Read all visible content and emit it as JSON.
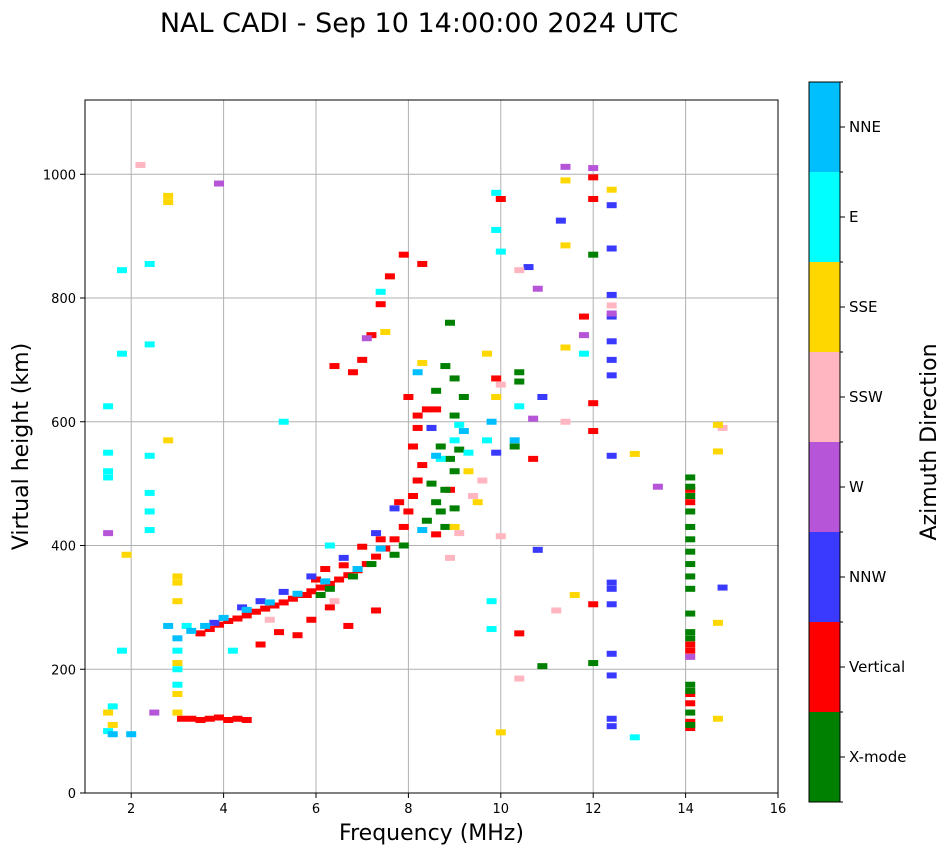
{
  "chart_data": {
    "type": "scatter",
    "title": "NAL CADI - Sep 10 14:00:00 2024 UTC",
    "xlabel": "Frequency (MHz)",
    "ylabel": "Virtual height (km)",
    "xlim": [
      1,
      16
    ],
    "ylim": [
      0,
      1120
    ],
    "xticks": [
      2,
      4,
      6,
      8,
      10,
      12,
      14,
      16
    ],
    "yticks": [
      0,
      200,
      400,
      600,
      800,
      1000
    ],
    "grid": true,
    "colorbar": {
      "label": "Azimuth Direction",
      "categories": [
        {
          "name": "X-mode",
          "color": "#008000"
        },
        {
          "name": "Vertical",
          "color": "#ff0000"
        },
        {
          "name": "NNW",
          "color": "#3a3aff"
        },
        {
          "name": "W",
          "color": "#b655d8"
        },
        {
          "name": "SSW",
          "color": "#ffb6c1"
        },
        {
          "name": "SSE",
          "color": "#ffd700"
        },
        {
          "name": "E",
          "color": "#00ffff"
        },
        {
          "name": "NNE",
          "color": "#00bfff"
        }
      ]
    },
    "series": [
      {
        "name": "Vertical",
        "points": [
          [
            3.1,
            120
          ],
          [
            3.3,
            120
          ],
          [
            3.5,
            118
          ],
          [
            3.7,
            120
          ],
          [
            3.9,
            122
          ],
          [
            4.1,
            118
          ],
          [
            4.3,
            120
          ],
          [
            4.5,
            118
          ],
          [
            3.5,
            258
          ],
          [
            3.7,
            265
          ],
          [
            3.9,
            272
          ],
          [
            4.1,
            278
          ],
          [
            4.3,
            282
          ],
          [
            4.5,
            287
          ],
          [
            4.7,
            293
          ],
          [
            4.9,
            298
          ],
          [
            5.1,
            303
          ],
          [
            5.3,
            308
          ],
          [
            5.5,
            314
          ],
          [
            5.7,
            320
          ],
          [
            5.9,
            326
          ],
          [
            6.1,
            332
          ],
          [
            6.3,
            338
          ],
          [
            6.5,
            345
          ],
          [
            6.7,
            352
          ],
          [
            6.9,
            360
          ],
          [
            7.1,
            370
          ],
          [
            7.3,
            382
          ],
          [
            7.5,
            395
          ],
          [
            7.7,
            410
          ],
          [
            7.9,
            430
          ],
          [
            8.0,
            455
          ],
          [
            8.1,
            480
          ],
          [
            8.2,
            505
          ],
          [
            8.3,
            530
          ],
          [
            8.1,
            560
          ],
          [
            8.2,
            590
          ],
          [
            8.4,
            620
          ],
          [
            6.4,
            690
          ],
          [
            6.8,
            680
          ],
          [
            7.0,
            700
          ],
          [
            7.2,
            740
          ],
          [
            7.4,
            790
          ],
          [
            7.6,
            835
          ],
          [
            7.9,
            870
          ],
          [
            8.3,
            855
          ],
          [
            8.6,
            620
          ],
          [
            8.0,
            640
          ],
          [
            8.2,
            610
          ],
          [
            5.8,
            320
          ],
          [
            6.0,
            345
          ],
          [
            6.6,
            368
          ],
          [
            6.2,
            362
          ],
          [
            7.0,
            398
          ],
          [
            7.4,
            410
          ],
          [
            7.8,
            470
          ],
          [
            4.8,
            240
          ],
          [
            5.2,
            260
          ],
          [
            5.6,
            255
          ],
          [
            5.9,
            280
          ],
          [
            6.3,
            300
          ],
          [
            6.7,
            270
          ],
          [
            7.3,
            295
          ],
          [
            8.6,
            418
          ],
          [
            8.9,
            490
          ],
          [
            14.1,
            105
          ],
          [
            14.1,
            115
          ],
          [
            14.1,
            145
          ],
          [
            14.1,
            160
          ],
          [
            14.1,
            230
          ],
          [
            14.1,
            240
          ],
          [
            14.1,
            470
          ],
          [
            14.1,
            490
          ],
          [
            10.0,
            960
          ],
          [
            9.9,
            670
          ],
          [
            10.7,
            540
          ],
          [
            10.4,
            258
          ],
          [
            12.0,
            585
          ],
          [
            12.0,
            630
          ],
          [
            12.0,
            995
          ],
          [
            12.0,
            960
          ],
          [
            11.8,
            770
          ],
          [
            12.0,
            305
          ]
        ]
      },
      {
        "name": "X-mode",
        "points": [
          [
            8.9,
            760
          ],
          [
            8.8,
            690
          ],
          [
            9.0,
            670
          ],
          [
            8.6,
            650
          ],
          [
            9.0,
            610
          ],
          [
            8.7,
            560
          ],
          [
            8.9,
            540
          ],
          [
            9.0,
            520
          ],
          [
            8.5,
            500
          ],
          [
            8.8,
            490
          ],
          [
            8.6,
            470
          ],
          [
            9.0,
            460
          ],
          [
            8.4,
            440
          ],
          [
            8.8,
            430
          ],
          [
            8.7,
            455
          ],
          [
            7.9,
            400
          ],
          [
            7.7,
            385
          ],
          [
            7.2,
            370
          ],
          [
            6.8,
            350
          ],
          [
            6.3,
            330
          ],
          [
            6.1,
            320
          ],
          [
            9.1,
            555
          ],
          [
            8.5,
            590
          ],
          [
            9.2,
            640
          ],
          [
            10.4,
            680
          ],
          [
            10.4,
            665
          ],
          [
            10.3,
            560
          ],
          [
            10.9,
            205
          ],
          [
            12.0,
            210
          ],
          [
            12.0,
            870
          ],
          [
            14.1,
            110
          ],
          [
            14.1,
            130
          ],
          [
            14.1,
            165
          ],
          [
            14.1,
            175
          ],
          [
            14.1,
            250
          ],
          [
            14.1,
            260
          ],
          [
            14.1,
            290
          ],
          [
            14.1,
            330
          ],
          [
            14.1,
            350
          ],
          [
            14.1,
            370
          ],
          [
            14.1,
            390
          ],
          [
            14.1,
            410
          ],
          [
            14.1,
            430
          ],
          [
            14.1,
            455
          ],
          [
            14.1,
            480
          ],
          [
            14.1,
            495
          ],
          [
            14.1,
            510
          ]
        ]
      },
      {
        "name": "NNW",
        "points": [
          [
            3.8,
            275
          ],
          [
            4.4,
            300
          ],
          [
            4.8,
            310
          ],
          [
            5.3,
            325
          ],
          [
            5.9,
            350
          ],
          [
            6.6,
            380
          ],
          [
            7.3,
            420
          ],
          [
            7.7,
            460
          ],
          [
            8.5,
            590
          ],
          [
            9.9,
            550
          ],
          [
            10.6,
            850
          ],
          [
            11.3,
            925
          ],
          [
            12.4,
            950
          ],
          [
            12.4,
            880
          ],
          [
            12.4,
            805
          ],
          [
            12.4,
            770
          ],
          [
            12.4,
            730
          ],
          [
            12.4,
            700
          ],
          [
            12.4,
            675
          ],
          [
            12.4,
            545
          ],
          [
            12.4,
            340
          ],
          [
            12.4,
            330
          ],
          [
            12.4,
            305
          ],
          [
            12.4,
            225
          ],
          [
            12.4,
            190
          ],
          [
            12.4,
            120
          ],
          [
            12.4,
            108
          ],
          [
            14.8,
            332
          ],
          [
            10.8,
            393
          ],
          [
            10.9,
            640
          ]
        ]
      },
      {
        "name": "W",
        "points": [
          [
            3.9,
            985
          ],
          [
            2.5,
            130
          ],
          [
            1.5,
            420
          ],
          [
            10.8,
            815
          ],
          [
            11.4,
            1012
          ],
          [
            12.0,
            1010
          ],
          [
            11.8,
            740
          ],
          [
            12.4,
            775
          ],
          [
            13.4,
            495
          ],
          [
            14.1,
            220
          ],
          [
            10.7,
            605
          ],
          [
            7.1,
            735
          ]
        ]
      },
      {
        "name": "SSW",
        "points": [
          [
            8.9,
            380
          ],
          [
            9.1,
            420
          ],
          [
            9.4,
            480
          ],
          [
            9.6,
            505
          ],
          [
            10.0,
            415
          ],
          [
            10.0,
            660
          ],
          [
            10.4,
            845
          ],
          [
            11.2,
            295
          ],
          [
            11.4,
            600
          ],
          [
            10.4,
            185
          ],
          [
            12.4,
            788
          ],
          [
            14.8,
            590
          ],
          [
            5.0,
            280
          ],
          [
            6.4,
            310
          ],
          [
            2.2,
            1015
          ]
        ]
      },
      {
        "name": "SSE",
        "points": [
          [
            2.8,
            965
          ],
          [
            2.8,
            955
          ],
          [
            2.8,
            570
          ],
          [
            3.0,
            340
          ],
          [
            3.0,
            350
          ],
          [
            3.0,
            310
          ],
          [
            3.0,
            210
          ],
          [
            3.0,
            160
          ],
          [
            3.0,
            130
          ],
          [
            1.5,
            130
          ],
          [
            1.6,
            110
          ],
          [
            1.9,
            385
          ],
          [
            9.0,
            430
          ],
          [
            9.5,
            470
          ],
          [
            9.3,
            520
          ],
          [
            9.7,
            710
          ],
          [
            9.9,
            640
          ],
          [
            10.0,
            98
          ],
          [
            11.4,
            990
          ],
          [
            11.4,
            885
          ],
          [
            11.4,
            720
          ],
          [
            11.6,
            320
          ],
          [
            12.4,
            975
          ],
          [
            12.9,
            548
          ],
          [
            14.7,
            595
          ],
          [
            14.7,
            552
          ],
          [
            14.7,
            275
          ],
          [
            14.7,
            120
          ],
          [
            7.5,
            745
          ],
          [
            8.3,
            695
          ]
        ]
      },
      {
        "name": "E",
        "points": [
          [
            1.5,
            625
          ],
          [
            1.5,
            550
          ],
          [
            1.5,
            520
          ],
          [
            1.5,
            510
          ],
          [
            1.6,
            140
          ],
          [
            1.5,
            100
          ],
          [
            1.8,
            845
          ],
          [
            2.4,
            855
          ],
          [
            2.4,
            725
          ],
          [
            2.4,
            545
          ],
          [
            2.4,
            485
          ],
          [
            2.4,
            455
          ],
          [
            2.4,
            425
          ],
          [
            3.0,
            230
          ],
          [
            3.0,
            200
          ],
          [
            3.0,
            175
          ],
          [
            9.0,
            570
          ],
          [
            9.3,
            550
          ],
          [
            8.7,
            540
          ],
          [
            9.1,
            595
          ],
          [
            9.7,
            570
          ],
          [
            9.8,
            310
          ],
          [
            9.8,
            265
          ],
          [
            9.9,
            970
          ],
          [
            9.9,
            910
          ],
          [
            10.0,
            875
          ],
          [
            10.4,
            625
          ],
          [
            11.8,
            710
          ],
          [
            12.9,
            90
          ],
          [
            7.4,
            810
          ],
          [
            6.3,
            400
          ],
          [
            5.3,
            600
          ],
          [
            3.2,
            270
          ],
          [
            4.2,
            230
          ],
          [
            1.8,
            710
          ],
          [
            1.8,
            230
          ]
        ]
      },
      {
        "name": "NNE",
        "points": [
          [
            3.3,
            262
          ],
          [
            3.6,
            270
          ],
          [
            4.0,
            283
          ],
          [
            4.5,
            296
          ],
          [
            5.0,
            308
          ],
          [
            5.6,
            322
          ],
          [
            6.2,
            342
          ],
          [
            6.9,
            362
          ],
          [
            7.4,
            395
          ],
          [
            8.3,
            425
          ],
          [
            8.6,
            545
          ],
          [
            9.2,
            585
          ],
          [
            9.8,
            600
          ],
          [
            10.3,
            570
          ],
          [
            8.2,
            680
          ],
          [
            1.6,
            95
          ],
          [
            2.0,
            95
          ],
          [
            2.8,
            270
          ],
          [
            3.0,
            250
          ]
        ]
      }
    ]
  }
}
